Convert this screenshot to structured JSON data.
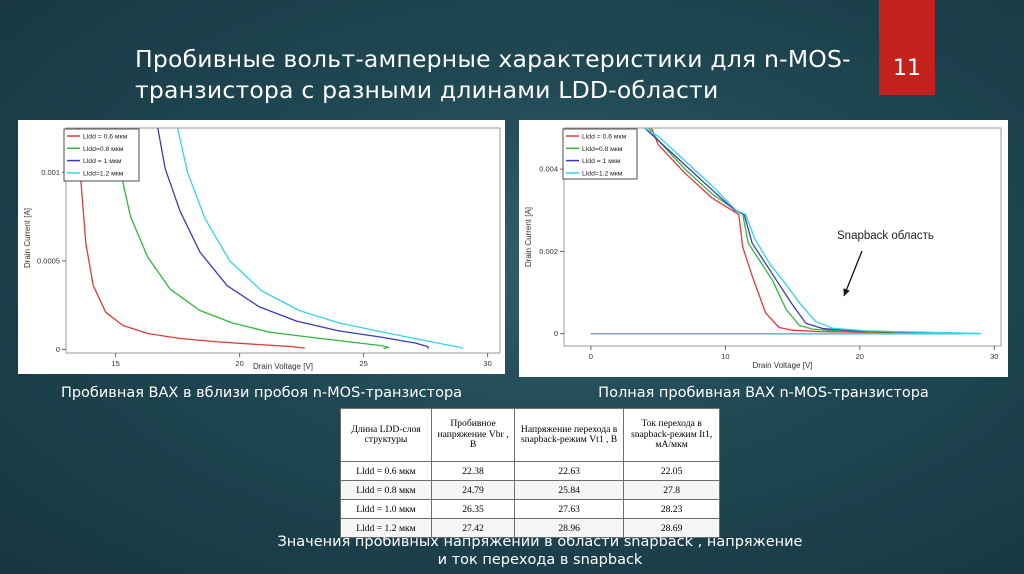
{
  "slide": {
    "title_line1": "Пробивные вольт-амперные характеристики для n-MOS-",
    "title_line2": "транзистора с разными длинами LDD-области",
    "page_number": "11",
    "accent_color": "#c2221b"
  },
  "captions": {
    "left": "Пробивная ВАХ в вблизи пробоя n-MOS-транзистора",
    "right": "Полная пробивная ВАХ n-MOS-транзистора",
    "bottom_line1": "Значения пробивных напряжений в области snapback , напряжение",
    "bottom_line2": "и ток перехода в snapback"
  },
  "chart_data": [
    {
      "type": "line",
      "xlabel": "Drain Voltage [V]",
      "ylabel": "Drain Current [A]",
      "xlim": [
        13,
        30.5
      ],
      "ylim": [
        -2e-05,
        0.00125
      ],
      "xticks": [
        "15",
        "20",
        "25",
        "30"
      ],
      "yticks": [
        "0",
        "0.0005",
        "0.001"
      ],
      "legend_position": "top-left",
      "series": [
        {
          "name": "Lldd = 0.6 мкм",
          "color": "#e03a3a",
          "x": [
            13.5,
            13.6,
            13.8,
            14.1,
            14.6,
            15.3,
            16.3,
            17.6,
            19.2,
            21.0,
            22.1,
            22.4,
            22.6,
            22.6
          ],
          "y": [
            0.00125,
            0.00095,
            0.0006,
            0.00036,
            0.00021,
            0.000135,
            9e-05,
            6.2e-05,
            4.2e-05,
            2.6e-05,
            1.6e-05,
            1.1e-05,
            8e-06,
            4e-06
          ]
        },
        {
          "name": "Lldd=0.8 мкм",
          "color": "#2fb83a",
          "x": [
            15.0,
            15.2,
            15.6,
            16.3,
            17.2,
            18.4,
            19.7,
            21.2,
            22.9,
            24.6,
            25.7,
            26.0,
            25.8
          ],
          "y": [
            0.00125,
            0.001,
            0.00075,
            0.00052,
            0.00034,
            0.00022,
            0.00015,
            9.8e-05,
            6.8e-05,
            4e-05,
            2.2e-05,
            1.2e-05,
            5e-06
          ]
        },
        {
          "name": "Lldd = 1 мкм",
          "color": "#3b3bb5",
          "x": [
            16.7,
            17.0,
            17.6,
            18.4,
            19.5,
            20.8,
            22.3,
            24.0,
            25.7,
            27.1,
            27.6,
            27.6
          ],
          "y": [
            0.00125,
            0.00102,
            0.00078,
            0.00055,
            0.00036,
            0.00024,
            0.00016,
            0.000105,
            7e-05,
            3.6e-05,
            1.5e-05,
            5e-06
          ]
        },
        {
          "name": "Lldd=1.2 мкм",
          "color": "#33d6e2",
          "x": [
            17.5,
            17.9,
            18.6,
            19.6,
            20.9,
            22.4,
            24.0,
            25.7,
            27.1,
            28.2,
            28.9,
            29.0
          ],
          "y": [
            0.00125,
            0.001,
            0.00074,
            0.0005,
            0.00033,
            0.00022,
            0.00015,
            0.0001,
            6e-05,
            3e-05,
            1.2e-05,
            5e-06
          ]
        }
      ]
    },
    {
      "type": "line",
      "xlabel": "Drain Voltage [V]",
      "ylabel": "Drain Current [A]",
      "xlim": [
        -2,
        30.5
      ],
      "ylim": [
        -0.0003,
        0.005
      ],
      "xticks": [
        "0",
        "10",
        "20",
        "30"
      ],
      "yticks": [
        "0",
        "0.002",
        "0.004"
      ],
      "legend_position": "top-left",
      "annotation": "Snapback область",
      "series": [
        {
          "name": "Lldd = 0.6 мкм",
          "color": "#e03a3a",
          "x": [
            0,
            22.4,
            22.6,
            22.0,
            20.0,
            17.0,
            15.0,
            14.0,
            13.0,
            12.0,
            11.3,
            11.0,
            10.5,
            9.0,
            7.0,
            5.0,
            4.5
          ],
          "y": [
            0,
            0,
            4e-06,
            2e-05,
            3.5e-05,
            5e-05,
            8.5e-05,
            0.00015,
            0.0005,
            0.0014,
            0.0021,
            0.0029,
            0.003,
            0.0033,
            0.0039,
            0.0046,
            0.005
          ]
        },
        {
          "name": "Lldd=0.8 мкм",
          "color": "#2fb83a",
          "x": [
            0,
            25.8,
            25.9,
            25.0,
            22.0,
            18.5,
            16.5,
            15.5,
            14.5,
            13.5,
            12.5,
            11.7,
            11.3,
            10.8,
            9.0,
            7.0,
            5.0,
            4.3
          ],
          "y": [
            0,
            0,
            5e-06,
            2e-05,
            4e-05,
            6e-05,
            0.00011,
            0.0002,
            0.0006,
            0.0013,
            0.0018,
            0.0022,
            0.0029,
            0.003,
            0.0034,
            0.004,
            0.0047,
            0.005
          ]
        },
        {
          "name": "Lldd = 1 мкм",
          "color": "#3b3bb5",
          "x": [
            0,
            27.5,
            27.6,
            26.0,
            23.0,
            19.5,
            17.3,
            16.0,
            15.0,
            14.0,
            13.0,
            12.0,
            11.4,
            10.7,
            9.0,
            7.0,
            5.0,
            4.0
          ],
          "y": [
            0,
            0,
            5e-06,
            2e-05,
            4e-05,
            7e-05,
            0.00012,
            0.00025,
            0.0007,
            0.0012,
            0.0017,
            0.0022,
            0.0029,
            0.003,
            0.0035,
            0.0041,
            0.0047,
            0.005
          ]
        },
        {
          "name": "Lldd=1.2 мкм",
          "color": "#33d6e2",
          "x": [
            0,
            28.9,
            29.0,
            27.0,
            24.0,
            20.5,
            18.0,
            16.7,
            15.5,
            14.5,
            13.3,
            12.2,
            11.5,
            10.8,
            9.0,
            7.0,
            5.0,
            4.0
          ],
          "y": [
            0,
            0,
            5e-06,
            2e-05,
            4e-05,
            7e-05,
            0.00013,
            0.0003,
            0.00075,
            0.0012,
            0.0017,
            0.0023,
            0.0029,
            0.003,
            0.0036,
            0.0042,
            0.0048,
            0.005
          ]
        }
      ]
    }
  ],
  "table": {
    "headers": [
      "Длина LDD-слоя структуры",
      "Пробивное напряжение Vbr , В",
      "Напряжение перехода в snapback-режим Vt1 , В",
      "Ток перехода в snapback-режим It1, мА/мкм"
    ],
    "rows": [
      [
        "Lldd = 0.6 мкм",
        "22.38",
        "22.63",
        "22.05"
      ],
      [
        "Lldd = 0.8 мкм",
        "24.79",
        "25.84",
        "27.8"
      ],
      [
        "Lldd = 1.0 мкм",
        "26.35",
        "27.63",
        "28.23"
      ],
      [
        "Lldd = 1.2 мкм",
        "27.42",
        "28.96",
        "28.69"
      ]
    ]
  }
}
